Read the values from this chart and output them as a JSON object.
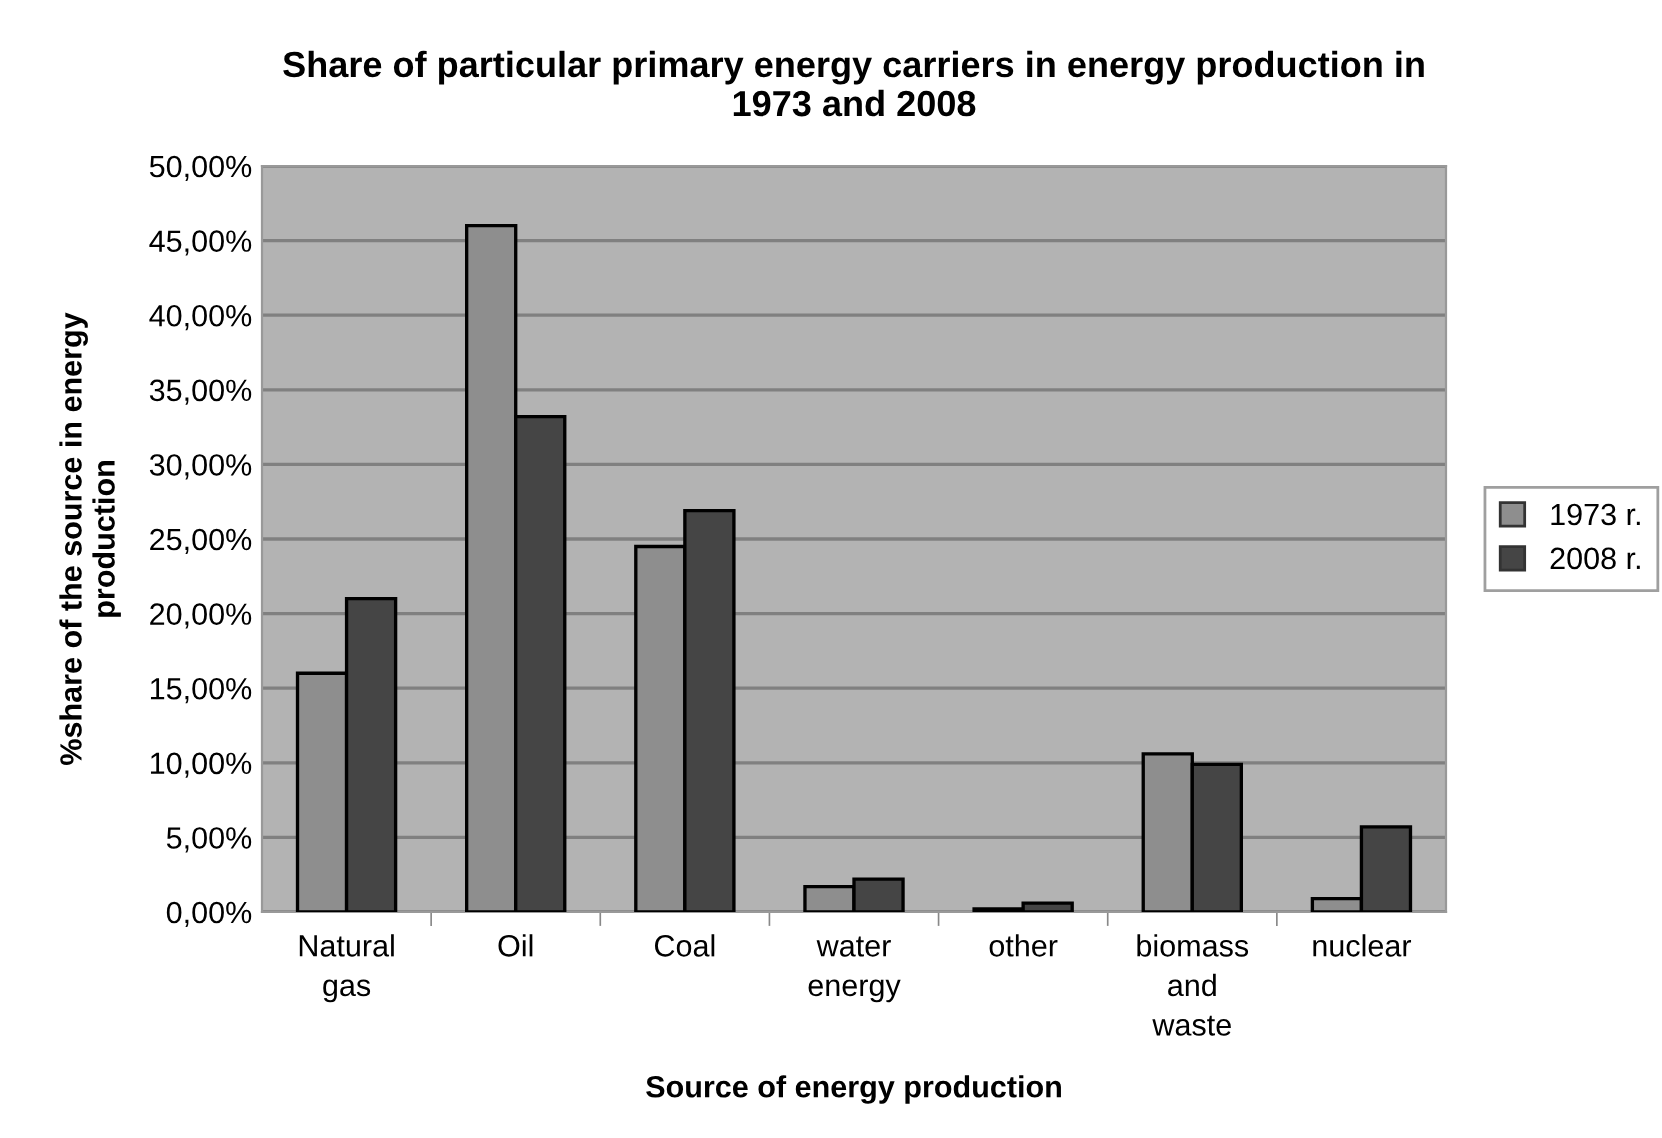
{
  "chart_data": {
    "type": "bar",
    "title": "Share of particular primary energy carriers in energy production in\n1973 and 2008",
    "xlabel": "Source of energy production",
    "ylabel": "%share of the source in energy\nproduction",
    "categories": [
      "Natural\ngas",
      "Oil",
      "Coal",
      "water\nenergy",
      "other",
      "biomass\nand\nwaste",
      "nuclear"
    ],
    "series": [
      {
        "name": "1973 r.",
        "color": "#8e8e8e",
        "values": [
          16.0,
          46.0,
          24.5,
          1.7,
          0.2,
          10.6,
          0.9
        ]
      },
      {
        "name": "2008 r.",
        "color": "#454545",
        "values": [
          21.0,
          33.2,
          26.9,
          2.2,
          0.6,
          9.9,
          5.7
        ]
      }
    ],
    "ylim": [
      0,
      50
    ],
    "yticks": [
      {
        "value": 0,
        "label": "0,00%"
      },
      {
        "value": 5,
        "label": "5,00%"
      },
      {
        "value": 10,
        "label": "10,00%"
      },
      {
        "value": 15,
        "label": "15,00%"
      },
      {
        "value": 20,
        "label": "20,00%"
      },
      {
        "value": 25,
        "label": "25,00%"
      },
      {
        "value": 30,
        "label": "30,00%"
      },
      {
        "value": 35,
        "label": "35,00%"
      },
      {
        "value": 40,
        "label": "40,00%"
      },
      {
        "value": 45,
        "label": "45,00%"
      },
      {
        "value": 50,
        "label": "50,00%"
      }
    ],
    "grid": "y",
    "legend": "right"
  }
}
